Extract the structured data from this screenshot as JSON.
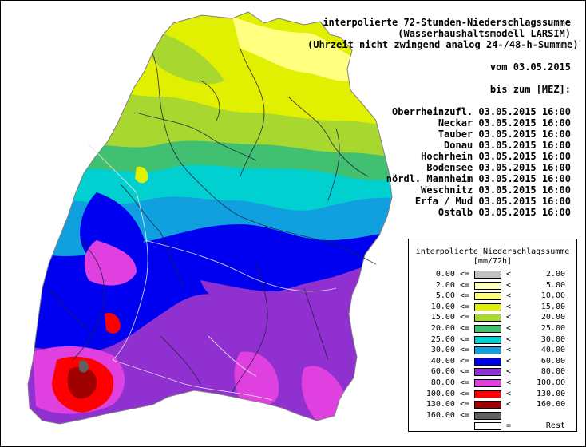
{
  "header": {
    "title_lines": [
      "interpolierte 72-Stunden-Niederschlagssumme",
      "(Wasserhaushaltsmodell LARSIM)",
      "(Uhrzeit nicht zwingend analog 24-/48-h-Summme)"
    ],
    "from_label": "vom 03.05.2015",
    "to_label": "bis zum [MEZ]:",
    "basins": [
      {
        "name": "Oberrheinzufl.",
        "datetime": "03.05.2015 16:00"
      },
      {
        "name": "Neckar",
        "datetime": "03.05.2015 16:00"
      },
      {
        "name": "Tauber",
        "datetime": "03.05.2015 16:00"
      },
      {
        "name": "Donau",
        "datetime": "03.05.2015 16:00"
      },
      {
        "name": "Hochrhein",
        "datetime": "03.05.2015 16:00"
      },
      {
        "name": "Bodensee",
        "datetime": "03.05.2015 16:00"
      },
      {
        "name": "nördl. Mannheim",
        "datetime": "03.05.2015 16:00"
      },
      {
        "name": "Weschnitz",
        "datetime": "03.05.2015 16:00"
      },
      {
        "name": "Erfa / Mud",
        "datetime": "03.05.2015 16:00"
      },
      {
        "name": "Ostalb",
        "datetime": "03.05.2015 16:00"
      }
    ]
  },
  "legend": {
    "title": "interpolierte Niederschlagssumme",
    "unit": "[mm/72h]",
    "classes": [
      {
        "lo": "0.00 <=",
        "op": "<",
        "hi": "2.00",
        "color": "#c0c0c0"
      },
      {
        "lo": "2.00 <=",
        "op": "<",
        "hi": "5.00",
        "color": "#ffffc0"
      },
      {
        "lo": "5.00 <=",
        "op": "<",
        "hi": "10.00",
        "color": "#ffff80"
      },
      {
        "lo": "10.00 <=",
        "op": "<",
        "hi": "15.00",
        "color": "#e0f000"
      },
      {
        "lo": "15.00 <=",
        "op": "<",
        "hi": "20.00",
        "color": "#a8d830"
      },
      {
        "lo": "20.00 <=",
        "op": "<",
        "hi": "25.00",
        "color": "#40c070"
      },
      {
        "lo": "25.00 <=",
        "op": "<",
        "hi": "30.00",
        "color": "#00d0d0"
      },
      {
        "lo": "30.00 <=",
        "op": "<",
        "hi": "40.00",
        "color": "#10a0e0"
      },
      {
        "lo": "40.00 <=",
        "op": "<",
        "hi": "60.00",
        "color": "#0000f0"
      },
      {
        "lo": "60.00 <=",
        "op": "<",
        "hi": "80.00",
        "color": "#9030d0"
      },
      {
        "lo": "80.00 <=",
        "op": "<",
        "hi": "100.00",
        "color": "#e040e0"
      },
      {
        "lo": "100.00 <=",
        "op": "<",
        "hi": "130.00",
        "color": "#ff0000"
      },
      {
        "lo": "130.00 <=",
        "op": "<",
        "hi": "160.00",
        "color": "#a00000"
      },
      {
        "lo": "160.00 <=",
        "op": "",
        "hi": "",
        "color": "#606060"
      },
      {
        "lo": "",
        "op": "=",
        "hi": "Rest",
        "color": "#ffffff"
      }
    ]
  }
}
